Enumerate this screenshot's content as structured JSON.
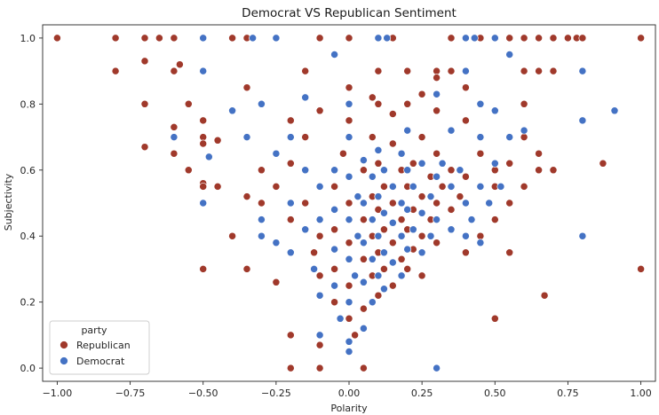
{
  "chart_data": {
    "type": "scatter",
    "title": "Democrat VS Republican Sentiment",
    "xlabel": "Polarity",
    "ylabel": "Subjectivity",
    "xlim": [
      -1.05,
      1.05
    ],
    "ylim": [
      -0.04,
      1.04
    ],
    "xticks": [
      -1.0,
      -0.75,
      -0.5,
      -0.25,
      0.0,
      0.25,
      0.5,
      0.75,
      1.0
    ],
    "xtick_labels": [
      "−1.00",
      "−0.75",
      "−0.50",
      "−0.25",
      "0.00",
      "0.25",
      "0.50",
      "0.75",
      "1.00"
    ],
    "yticks": [
      0.0,
      0.2,
      0.4,
      0.6,
      0.8,
      1.0
    ],
    "ytick_labels": [
      "0.0",
      "0.2",
      "0.4",
      "0.6",
      "0.8",
      "1.0"
    ],
    "grid": false,
    "legend": {
      "title": "party",
      "placement": "lower-left",
      "entries": [
        "Republican",
        "Democrat"
      ]
    },
    "series": [
      {
        "name": "Republican",
        "color": "#a0392b",
        "points": [
          [
            -1.0,
            1.0
          ],
          [
            -0.8,
            1.0
          ],
          [
            -0.7,
            1.0
          ],
          [
            -0.65,
            1.0
          ],
          [
            -0.6,
            1.0
          ],
          [
            -0.5,
            1.0
          ],
          [
            -0.4,
            1.0
          ],
          [
            -0.35,
            1.0
          ],
          [
            -0.1,
            1.0
          ],
          [
            0.0,
            1.0
          ],
          [
            0.15,
            1.0
          ],
          [
            0.35,
            1.0
          ],
          [
            0.45,
            1.0
          ],
          [
            0.5,
            1.0
          ],
          [
            0.55,
            1.0
          ],
          [
            0.6,
            1.0
          ],
          [
            0.65,
            1.0
          ],
          [
            0.7,
            1.0
          ],
          [
            0.78,
            1.0
          ],
          [
            0.8,
            1.0
          ],
          [
            1.0,
            1.0
          ],
          [
            -0.8,
            0.9
          ],
          [
            -0.7,
            0.93
          ],
          [
            -0.6,
            0.9
          ],
          [
            -0.58,
            0.92
          ],
          [
            -0.15,
            0.9
          ],
          [
            0.1,
            0.9
          ],
          [
            0.2,
            0.9
          ],
          [
            0.3,
            0.9
          ],
          [
            0.35,
            0.9
          ],
          [
            0.6,
            0.9
          ],
          [
            0.65,
            0.9
          ],
          [
            0.7,
            0.9
          ],
          [
            0.55,
            0.95
          ],
          [
            0.75,
            1.0
          ],
          [
            -0.7,
            0.8
          ],
          [
            -0.55,
            0.8
          ],
          [
            -0.35,
            0.85
          ],
          [
            0.0,
            0.85
          ],
          [
            0.3,
            0.88
          ],
          [
            0.4,
            0.85
          ],
          [
            0.6,
            0.8
          ],
          [
            -0.7,
            0.67
          ],
          [
            -0.5,
            0.75
          ],
          [
            -0.5,
            0.7
          ],
          [
            -0.45,
            0.69
          ],
          [
            -0.5,
            0.68
          ],
          [
            -0.6,
            0.65
          ],
          [
            -0.55,
            0.6
          ],
          [
            -0.5,
            0.56
          ],
          [
            -0.5,
            0.55
          ],
          [
            -0.6,
            0.73
          ],
          [
            -0.45,
            0.55
          ],
          [
            -0.4,
            0.4
          ],
          [
            -0.35,
            0.52
          ],
          [
            -0.35,
            0.3
          ],
          [
            -0.5,
            0.3
          ],
          [
            -0.25,
            0.26
          ],
          [
            -0.2,
            0.1
          ],
          [
            -0.1,
            0.07
          ],
          [
            -0.2,
            0.0
          ],
          [
            -0.1,
            0.0
          ],
          [
            0.05,
            0.0
          ],
          [
            0.3,
            0.0
          ],
          [
            0.5,
            0.15
          ],
          [
            0.55,
            0.35
          ],
          [
            0.67,
            0.22
          ],
          [
            0.6,
            0.55
          ],
          [
            0.65,
            0.6
          ],
          [
            0.7,
            0.6
          ],
          [
            0.65,
            0.65
          ],
          [
            0.6,
            0.7
          ],
          [
            0.87,
            0.62
          ],
          [
            1.0,
            0.3
          ],
          [
            0.5,
            0.55
          ],
          [
            0.55,
            0.5
          ],
          [
            0.5,
            0.6
          ],
          [
            0.45,
            0.65
          ],
          [
            0.4,
            0.75
          ],
          [
            0.45,
            0.4
          ],
          [
            0.4,
            0.35
          ],
          [
            0.5,
            0.45
          ],
          [
            0.55,
            0.62
          ],
          [
            -0.3,
            0.6
          ],
          [
            -0.3,
            0.5
          ],
          [
            -0.25,
            0.55
          ],
          [
            -0.2,
            0.62
          ],
          [
            -0.2,
            0.45
          ],
          [
            -0.15,
            0.7
          ],
          [
            -0.15,
            0.5
          ],
          [
            -0.12,
            0.35
          ],
          [
            -0.1,
            0.4
          ],
          [
            -0.1,
            0.28
          ],
          [
            -0.05,
            0.55
          ],
          [
            -0.05,
            0.42
          ],
          [
            -0.05,
            0.3
          ],
          [
            -0.05,
            0.2
          ],
          [
            -0.02,
            0.65
          ],
          [
            0.0,
            0.5
          ],
          [
            0.0,
            0.38
          ],
          [
            0.0,
            0.25
          ],
          [
            0.0,
            0.15
          ],
          [
            0.02,
            0.1
          ],
          [
            0.05,
            0.6
          ],
          [
            0.05,
            0.45
          ],
          [
            0.05,
            0.33
          ],
          [
            0.05,
            0.18
          ],
          [
            0.08,
            0.7
          ],
          [
            0.08,
            0.52
          ],
          [
            0.08,
            0.4
          ],
          [
            0.08,
            0.28
          ],
          [
            0.1,
            0.62
          ],
          [
            0.1,
            0.48
          ],
          [
            0.1,
            0.35
          ],
          [
            0.1,
            0.22
          ],
          [
            0.12,
            0.55
          ],
          [
            0.12,
            0.42
          ],
          [
            0.12,
            0.3
          ],
          [
            0.15,
            0.68
          ],
          [
            0.15,
            0.5
          ],
          [
            0.15,
            0.38
          ],
          [
            0.15,
            0.25
          ],
          [
            0.18,
            0.6
          ],
          [
            0.18,
            0.45
          ],
          [
            0.18,
            0.33
          ],
          [
            0.2,
            0.72
          ],
          [
            0.2,
            0.55
          ],
          [
            0.2,
            0.42
          ],
          [
            0.2,
            0.3
          ],
          [
            0.22,
            0.62
          ],
          [
            0.22,
            0.48
          ],
          [
            0.22,
            0.36
          ],
          [
            0.25,
            0.7
          ],
          [
            0.25,
            0.52
          ],
          [
            0.25,
            0.4
          ],
          [
            0.25,
            0.28
          ],
          [
            0.28,
            0.58
          ],
          [
            0.28,
            0.45
          ],
          [
            0.3,
            0.65
          ],
          [
            0.3,
            0.5
          ],
          [
            0.3,
            0.38
          ],
          [
            0.32,
            0.55
          ],
          [
            0.35,
            0.6
          ],
          [
            0.35,
            0.48
          ],
          [
            0.38,
            0.52
          ],
          [
            0.4,
            0.58
          ],
          [
            0.1,
            0.8
          ],
          [
            0.2,
            0.8
          ],
          [
            0.3,
            0.78
          ],
          [
            -0.1,
            0.78
          ],
          [
            -0.2,
            0.75
          ],
          [
            0.0,
            0.75
          ],
          [
            0.15,
            0.77
          ],
          [
            0.25,
            0.83
          ],
          [
            0.08,
            0.82
          ]
        ]
      },
      {
        "name": "Democrat",
        "color": "#4472c4",
        "points": [
          [
            -0.5,
            1.0
          ],
          [
            -0.33,
            1.0
          ],
          [
            -0.25,
            1.0
          ],
          [
            0.1,
            1.0
          ],
          [
            0.13,
            1.0
          ],
          [
            0.4,
            1.0
          ],
          [
            0.43,
            1.0
          ],
          [
            0.5,
            1.0
          ],
          [
            -0.5,
            0.9
          ],
          [
            -0.05,
            0.95
          ],
          [
            0.4,
            0.9
          ],
          [
            0.55,
            0.95
          ],
          [
            0.8,
            0.9
          ],
          [
            -0.4,
            0.78
          ],
          [
            -0.3,
            0.8
          ],
          [
            -0.15,
            0.82
          ],
          [
            0.0,
            0.8
          ],
          [
            0.3,
            0.83
          ],
          [
            0.45,
            0.8
          ],
          [
            0.5,
            0.78
          ],
          [
            0.8,
            0.75
          ],
          [
            0.91,
            0.78
          ],
          [
            -0.6,
            0.7
          ],
          [
            -0.5,
            0.5
          ],
          [
            -0.48,
            0.64
          ],
          [
            -0.3,
            0.4
          ],
          [
            -0.25,
            0.38
          ],
          [
            -0.3,
            0.45
          ],
          [
            -0.2,
            0.5
          ],
          [
            -0.2,
            0.35
          ],
          [
            -0.15,
            0.6
          ],
          [
            -0.15,
            0.42
          ],
          [
            -0.12,
            0.3
          ],
          [
            -0.1,
            0.55
          ],
          [
            -0.1,
            0.45
          ],
          [
            -0.1,
            0.22
          ],
          [
            -0.1,
            0.1
          ],
          [
            -0.05,
            0.6
          ],
          [
            -0.05,
            0.48
          ],
          [
            -0.05,
            0.36
          ],
          [
            -0.05,
            0.25
          ],
          [
            -0.03,
            0.15
          ],
          [
            0.0,
            0.58
          ],
          [
            0.0,
            0.45
          ],
          [
            0.0,
            0.33
          ],
          [
            0.0,
            0.2
          ],
          [
            0.0,
            0.08
          ],
          [
            0.02,
            0.28
          ],
          [
            0.03,
            0.52
          ],
          [
            0.03,
            0.4
          ],
          [
            0.05,
            0.63
          ],
          [
            0.05,
            0.5
          ],
          [
            0.05,
            0.38
          ],
          [
            0.05,
            0.26
          ],
          [
            0.05,
            0.12
          ],
          [
            0.08,
            0.58
          ],
          [
            0.08,
            0.45
          ],
          [
            0.08,
            0.33
          ],
          [
            0.08,
            0.2
          ],
          [
            0.1,
            0.66
          ],
          [
            0.1,
            0.52
          ],
          [
            0.1,
            0.4
          ],
          [
            0.1,
            0.28
          ],
          [
            0.12,
            0.6
          ],
          [
            0.12,
            0.47
          ],
          [
            0.12,
            0.35
          ],
          [
            0.12,
            0.24
          ],
          [
            0.15,
            0.55
          ],
          [
            0.15,
            0.44
          ],
          [
            0.15,
            0.32
          ],
          [
            0.18,
            0.65
          ],
          [
            0.18,
            0.5
          ],
          [
            0.18,
            0.4
          ],
          [
            0.18,
            0.28
          ],
          [
            0.2,
            0.6
          ],
          [
            0.2,
            0.48
          ],
          [
            0.2,
            0.36
          ],
          [
            0.22,
            0.55
          ],
          [
            0.22,
            0.42
          ],
          [
            0.25,
            0.62
          ],
          [
            0.25,
            0.47
          ],
          [
            0.25,
            0.35
          ],
          [
            0.28,
            0.52
          ],
          [
            0.28,
            0.4
          ],
          [
            0.3,
            0.58
          ],
          [
            0.3,
            0.45
          ],
          [
            0.32,
            0.62
          ],
          [
            0.35,
            0.55
          ],
          [
            0.35,
            0.42
          ],
          [
            0.38,
            0.6
          ],
          [
            0.4,
            0.5
          ],
          [
            0.42,
            0.45
          ],
          [
            0.45,
            0.55
          ],
          [
            0.48,
            0.5
          ],
          [
            0.5,
            0.62
          ],
          [
            0.52,
            0.55
          ],
          [
            0.45,
            0.38
          ],
          [
            0.4,
            0.4
          ],
          [
            0.55,
            0.7
          ],
          [
            0.6,
            0.72
          ],
          [
            0.8,
            0.4
          ],
          [
            0.3,
            0.0
          ],
          [
            0.0,
            0.05
          ],
          [
            -0.35,
            0.7
          ],
          [
            -0.25,
            0.65
          ],
          [
            -0.2,
            0.7
          ],
          [
            0.0,
            0.7
          ],
          [
            0.2,
            0.72
          ],
          [
            0.35,
            0.72
          ],
          [
            0.45,
            0.7
          ]
        ]
      }
    ]
  }
}
